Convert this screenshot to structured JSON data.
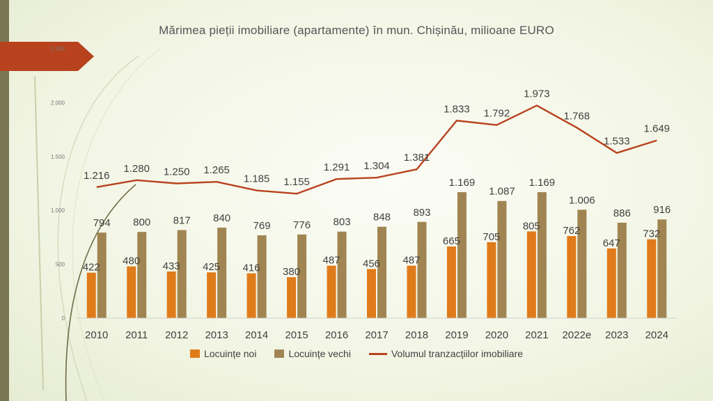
{
  "chart_data": {
    "type": "bar",
    "title": "Mărimea pieții imobiliare (apartamente) în mun. Chișinău, milioane EURO",
    "categories": [
      "2010",
      "2011",
      "2012",
      "2013",
      "2014",
      "2015",
      "2016",
      "2017",
      "2018",
      "2019",
      "2020",
      "2021",
      "2022e",
      "2023",
      "2024"
    ],
    "series": [
      {
        "name": "Locuințe noi",
        "type": "bar",
        "color": "#e07b1a",
        "values": [
          422,
          480,
          433,
          425,
          416,
          380,
          487,
          456,
          487,
          665,
          705,
          805,
          762,
          647,
          732
        ],
        "labels": [
          "422",
          "480",
          "433",
          "425",
          "416",
          "380",
          "487",
          "456",
          "487",
          "665",
          "705",
          "805",
          "762",
          "647",
          "732"
        ]
      },
      {
        "name": "Locuințe vechi",
        "type": "bar",
        "color": "#a08552",
        "values": [
          794,
          800,
          817,
          840,
          769,
          776,
          803,
          848,
          893,
          1169,
          1087,
          1169,
          1006,
          886,
          916
        ],
        "labels": [
          "794",
          "800",
          "817",
          "840",
          "769",
          "776",
          "803",
          "848",
          "893",
          "1.169",
          "1.087",
          "1.169",
          "1.006",
          "886",
          "916"
        ]
      },
      {
        "name": "Volumul tranzacțiilor imobiliare",
        "type": "line",
        "color": "#b8421e",
        "values": [
          1216,
          1280,
          1250,
          1265,
          1185,
          1155,
          1291,
          1304,
          1381,
          1833,
          1792,
          1973,
          1768,
          1533,
          1649
        ],
        "labels": [
          "1.216",
          "1.280",
          "1.250",
          "1.265",
          "1.185",
          "1.155",
          "1.291",
          "1.304",
          "1.381",
          "1.833",
          "1.792",
          "1.973",
          "1.768",
          "1.533",
          "1.649"
        ]
      }
    ],
    "y_ticks": [
      0,
      500,
      1000,
      1500,
      2000,
      2500
    ],
    "y_tick_labels": [
      "0",
      "500",
      "1.000",
      "1.500",
      "2.000",
      "2.500"
    ],
    "ylim": [
      0,
      2500
    ],
    "grid": false,
    "legend_position": "bottom"
  }
}
